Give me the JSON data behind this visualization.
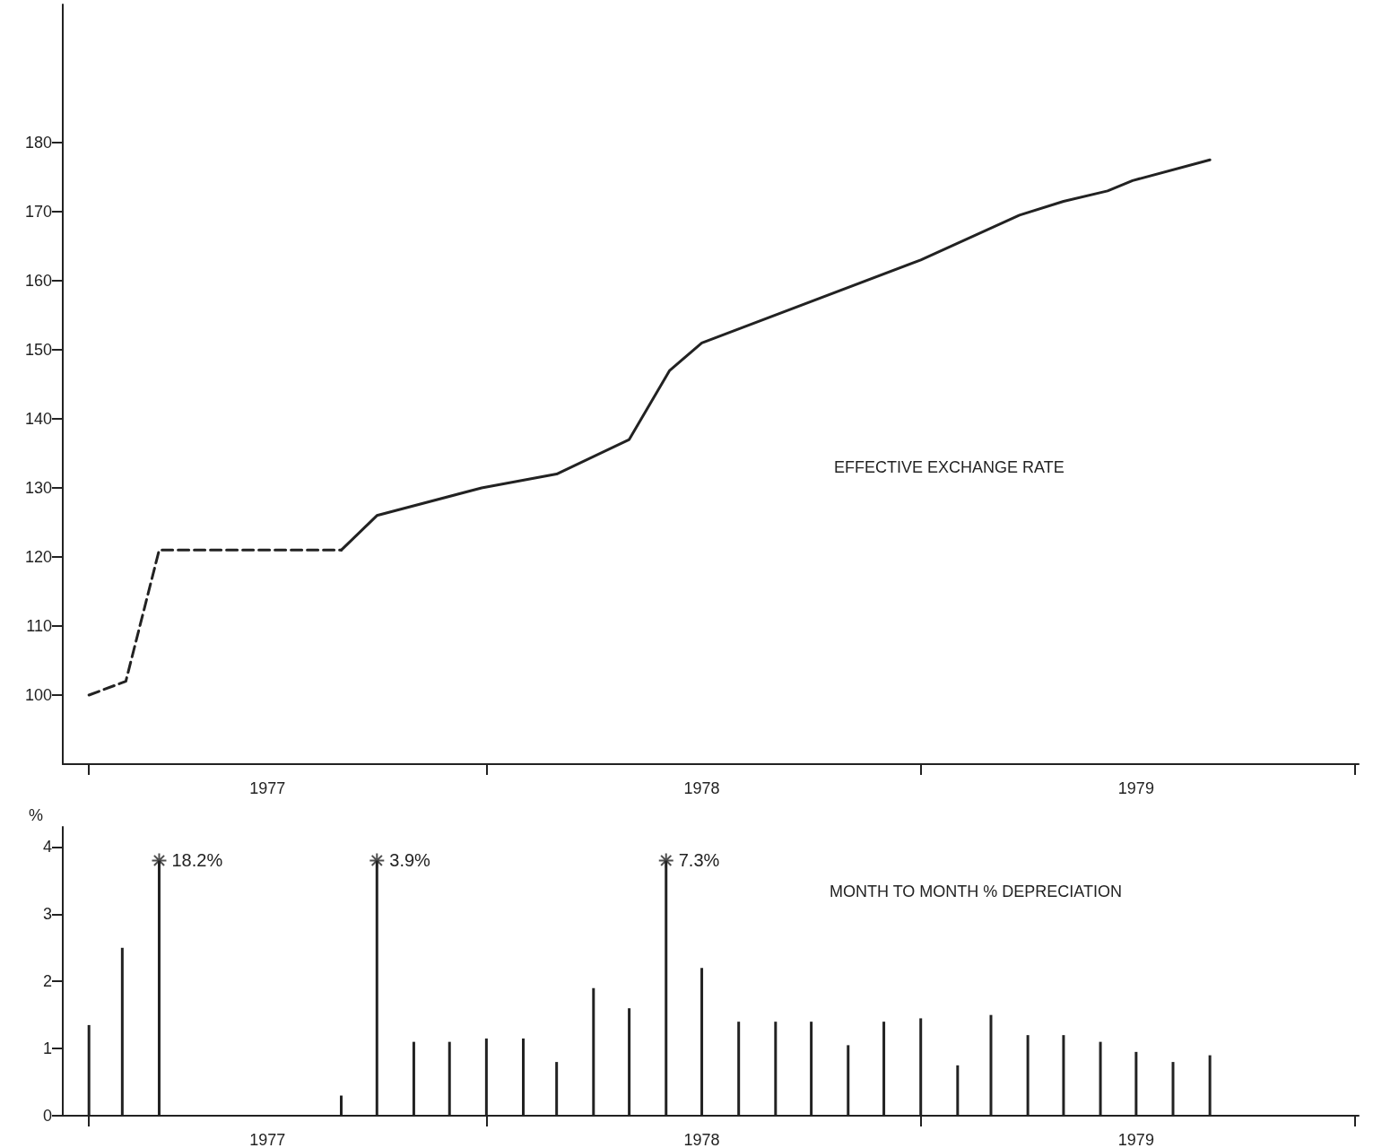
{
  "chart_data": [
    {
      "type": "line",
      "annotations": [
        "EFFECTIVE EXCHANGE RATE"
      ],
      "xlim": [
        "1977-01-10",
        "1980-01-04"
      ],
      "xticks": [
        {
          "value": "1977-02",
          "label": null
        },
        {
          "value": "1977-07-01",
          "label": "1977"
        },
        {
          "value": "1978-01",
          "label": null
        },
        {
          "value": "1978-07-01",
          "label": "1978"
        },
        {
          "value": "1979-01",
          "label": null
        },
        {
          "value": "1979-07-01",
          "label": "1979"
        },
        {
          "value": "1980-01",
          "label": null
        }
      ],
      "ylim": [
        90,
        200
      ],
      "yticks": [
        100,
        110,
        120,
        130,
        140,
        150,
        160,
        170,
        180
      ],
      "grid": false,
      "marker": "none",
      "series": [
        {
          "color": "#222222",
          "line_style": "dashed",
          "x": [
            "1977-02-01",
            "1977-03-04",
            "1977-04-01",
            "1977-09-01"
          ],
          "values": [
            100,
            102,
            121,
            121
          ]
        },
        {
          "color": "#222222",
          "line_style": "solid",
          "x": [
            "1977-09-01",
            "1977-10-01",
            "1977-12-28",
            "1978-03-01",
            "1978-05-01",
            "1978-06-04",
            "1978-07-01",
            "1979-01-01",
            "1979-03-25",
            "1979-05-01",
            "1979-06-07",
            "1979-06-28",
            "1979-09-01"
          ],
          "values": [
            121,
            126,
            130,
            132,
            137,
            147,
            151,
            163,
            169.5,
            171.5,
            173,
            174.5,
            177.5
          ]
        }
      ]
    },
    {
      "type": "bar",
      "ylabel": "%",
      "annotations": [
        "MONTH TO MONTH % DEPRECIATION",
        {
          "text": "18.2%",
          "x": "1977-04",
          "y": 3.8
        },
        {
          "text": "3.9%",
          "x": "1977-10",
          "y": 3.8
        },
        {
          "text": "7.3%",
          "x": "1978-06",
          "y": 3.8
        }
      ],
      "xlim": [
        "1977-01-10",
        "1980-01-04"
      ],
      "xticks": [
        {
          "value": "1977-02",
          "label": null
        },
        {
          "value": "1977-07-01",
          "label": "1977"
        },
        {
          "value": "1978-01",
          "label": null
        },
        {
          "value": "1978-07-01",
          "label": "1978"
        },
        {
          "value": "1979-01",
          "label": null
        },
        {
          "value": "1979-07-01",
          "label": "1979"
        },
        {
          "value": "1980-01",
          "label": null
        }
      ],
      "ylim": [
        0,
        4.3
      ],
      "yticks": [
        0,
        1,
        2,
        3,
        4
      ],
      "grid": false,
      "series": [
        {
          "color": "#222222",
          "x": [
            "1977-02",
            "1977-03",
            "1977-04",
            "1977-05",
            "1977-06",
            "1977-07",
            "1977-08",
            "1977-09",
            "1977-10",
            "1977-11",
            "1977-12",
            "1978-01",
            "1978-02",
            "1978-03",
            "1978-04",
            "1978-05",
            "1978-06",
            "1978-07",
            "1978-08",
            "1978-09",
            "1978-10",
            "1978-11",
            "1978-12",
            "1979-01",
            "1979-02",
            "1979-03",
            "1979-04",
            "1979-05",
            "1979-06",
            "1979-07",
            "1979-08",
            "1979-09"
          ],
          "values": [
            1.35,
            2.5,
            3.8,
            0,
            0,
            0,
            0,
            0.3,
            3.8,
            1.1,
            1.1,
            1.15,
            1.15,
            0.8,
            1.9,
            1.6,
            3.8,
            2.2,
            1.4,
            1.4,
            1.4,
            1.05,
            1.4,
            1.45,
            0.75,
            1.5,
            1.2,
            1.2,
            1.1,
            0.95,
            0.8,
            0.9
          ]
        },
        {
          "type": "scatter",
          "color": "#222222",
          "marker": "cross",
          "x": [
            "1977-04",
            "1977-10",
            "1978-06"
          ],
          "values": [
            3.8,
            3.8,
            3.8
          ]
        }
      ]
    }
  ]
}
